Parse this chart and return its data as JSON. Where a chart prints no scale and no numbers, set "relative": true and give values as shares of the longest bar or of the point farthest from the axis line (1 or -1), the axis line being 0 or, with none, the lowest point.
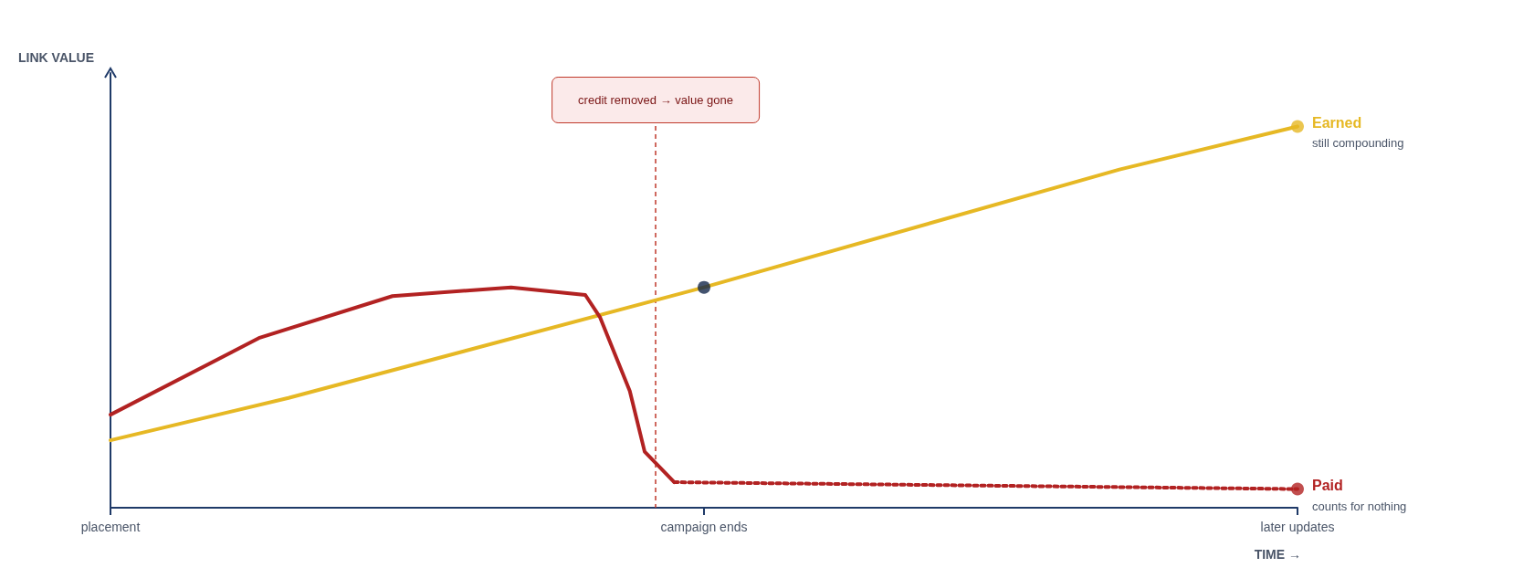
{
  "chart_data": {
    "type": "line",
    "relative": true,
    "ylabel": "LINK VALUE",
    "xlabel": "TIME →",
    "categories": [
      "placement",
      null,
      null,
      null,
      null,
      null,
      null,
      null,
      null,
      null,
      null,
      null,
      null,
      null,
      null,
      null,
      null,
      null,
      null,
      null,
      null,
      null,
      null,
      null,
      null,
      null,
      null,
      null,
      null,
      null,
      null,
      null,
      null,
      null,
      null,
      null,
      null,
      null,
      null,
      null,
      "campaign ends",
      null,
      null,
      null,
      null,
      null,
      null,
      null,
      null,
      null,
      null,
      null,
      null,
      null,
      null,
      null,
      null,
      null,
      null,
      null,
      null,
      null,
      null,
      null,
      null,
      null,
      null,
      null,
      null,
      null,
      null,
      null,
      null,
      null,
      null,
      null,
      null,
      null,
      null,
      null,
      "later updates"
    ],
    "marker": "none",
    "line_style": "solid",
    "legend": false,
    "grid": false,
    "series": [
      {
        "name": "Earned",
        "color": "#e6b824",
        "values": [
          0.177,
          null,
          null,
          null,
          null,
          null,
          null,
          null,
          null,
          null,
          null,
          null,
          0.288,
          null,
          null,
          null,
          null,
          null,
          null,
          null,
          null,
          null,
          null,
          null,
          null,
          null,
          null,
          null,
          null,
          null,
          null,
          null,
          null,
          null,
          null,
          null,
          null,
          null,
          null,
          null,
          0.578,
          null,
          null,
          null,
          null,
          null,
          null,
          null,
          null,
          null,
          null,
          null,
          null,
          null,
          null,
          null,
          null,
          null,
          null,
          null,
          null,
          null,
          null,
          null,
          null,
          null,
          null,
          null,
          0.887,
          null,
          null,
          null,
          null,
          null,
          null,
          null,
          null,
          null,
          null,
          null,
          1
        ]
      },
      {
        "color": "#b22222",
        "values": [
          0.244,
          null,
          null,
          null,
          null,
          null,
          null,
          null,
          null,
          null,
          0.445,
          null,
          null,
          null,
          null,
          null,
          null,
          null,
          null,
          0.555,
          null,
          null,
          null,
          null,
          null,
          null,
          null,
          0.578,
          null,
          null,
          null,
          null,
          0.558,
          0.499,
          null,
          0.306,
          0.147,
          null,
          0.067,
          null,
          null,
          null,
          null,
          null,
          null,
          null,
          null,
          null,
          null,
          null,
          null,
          null,
          null,
          null,
          null,
          null,
          null,
          null,
          null,
          null,
          null,
          null,
          null,
          null,
          null,
          null,
          null,
          null,
          null,
          null,
          null,
          null,
          null,
          null,
          null,
          null,
          null,
          null,
          null,
          null,
          null
        ]
      },
      {
        "name": "Paid",
        "color": "#b22222",
        "line_style": "dotted",
        "values": [
          null,
          null,
          null,
          null,
          null,
          null,
          null,
          null,
          null,
          null,
          null,
          null,
          null,
          null,
          null,
          null,
          null,
          null,
          null,
          null,
          null,
          null,
          null,
          null,
          null,
          null,
          null,
          null,
          null,
          null,
          null,
          null,
          null,
          null,
          null,
          null,
          null,
          null,
          0.067,
          null,
          null,
          null,
          null,
          null,
          null,
          null,
          null,
          null,
          null,
          null,
          null,
          null,
          null,
          null,
          null,
          null,
          null,
          null,
          null,
          null,
          null,
          null,
          null,
          null,
          null,
          null,
          null,
          null,
          null,
          null,
          null,
          null,
          null,
          null,
          null,
          null,
          null,
          null,
          null,
          null,
          0.049
        ]
      },
      {
        "type": "scatter",
        "marker": "circle",
        "color": "#e6b824",
        "values": [
          null,
          null,
          null,
          null,
          null,
          null,
          null,
          null,
          null,
          null,
          null,
          null,
          null,
          null,
          null,
          null,
          null,
          null,
          null,
          null,
          null,
          null,
          null,
          null,
          null,
          null,
          null,
          null,
          null,
          null,
          null,
          null,
          null,
          null,
          null,
          null,
          null,
          null,
          null,
          null,
          null,
          null,
          null,
          null,
          null,
          null,
          null,
          null,
          null,
          null,
          null,
          null,
          null,
          null,
          null,
          null,
          null,
          null,
          null,
          null,
          null,
          null,
          null,
          null,
          null,
          null,
          null,
          null,
          null,
          null,
          null,
          null,
          null,
          null,
          null,
          null,
          null,
          null,
          null,
          null,
          1
        ]
      },
      {
        "type": "scatter",
        "marker": "circle",
        "color": "#b22222",
        "values": [
          null,
          null,
          null,
          null,
          null,
          null,
          null,
          null,
          null,
          null,
          null,
          null,
          null,
          null,
          null,
          null,
          null,
          null,
          null,
          null,
          null,
          null,
          null,
          null,
          null,
          null,
          null,
          null,
          null,
          null,
          null,
          null,
          null,
          null,
          null,
          null,
          null,
          null,
          null,
          null,
          null,
          null,
          null,
          null,
          null,
          null,
          null,
          null,
          null,
          null,
          null,
          null,
          null,
          null,
          null,
          null,
          null,
          null,
          null,
          null,
          null,
          null,
          null,
          null,
          null,
          null,
          null,
          null,
          null,
          null,
          null,
          null,
          null,
          null,
          null,
          null,
          null,
          null,
          null,
          null,
          0.049
        ]
      },
      {
        "type": "scatter",
        "marker": "circle",
        "color": "#14284b",
        "values": [
          null,
          null,
          null,
          null,
          null,
          null,
          null,
          null,
          null,
          null,
          null,
          null,
          null,
          null,
          null,
          null,
          null,
          null,
          null,
          null,
          null,
          null,
          null,
          null,
          null,
          null,
          null,
          null,
          null,
          null,
          null,
          null,
          null,
          null,
          null,
          null,
          null,
          null,
          null,
          null,
          0.578,
          null,
          null,
          null,
          null,
          null,
          null,
          null,
          null,
          null,
          null,
          null,
          null,
          null,
          null,
          null,
          null,
          null,
          null,
          null,
          null,
          null,
          null,
          null,
          null,
          null,
          null,
          null,
          null,
          null,
          null,
          null,
          null,
          null,
          null,
          null,
          null,
          null,
          null,
          null,
          null
        ]
      }
    ],
    "annotations": [
      "credit removed → value gone",
      "still compounding",
      "counts for nothing"
    ]
  }
}
